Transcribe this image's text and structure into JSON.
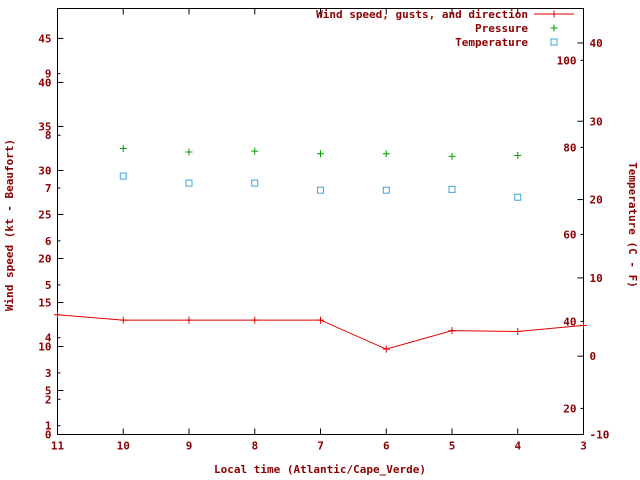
{
  "page": {
    "background": "#ffffff",
    "text_color": "#8b0000",
    "border_color": "#000000"
  },
  "legend": {
    "items": [
      {
        "label": "Wind speed, gusts, and direction",
        "marker": "line-plus"
      },
      {
        "label": "Pressure",
        "marker": "plus"
      },
      {
        "label": "Temperature",
        "marker": "open-square"
      }
    ]
  },
  "axes": {
    "x": {
      "label": "Local time (Atlantic/Cape_Verde)",
      "tick_labels": [
        "11",
        "10",
        "9",
        "8",
        "7",
        "6",
        "5",
        "4",
        "3"
      ],
      "tick_values": [
        11,
        10,
        9,
        8,
        7,
        6,
        5,
        4,
        3
      ],
      "direction": "decreasing-left-to-right"
    },
    "left": {
      "label": "Wind speed (kt - Beaufort)",
      "kt_ticks": [
        0,
        5,
        10,
        15,
        20,
        25,
        30,
        35,
        40,
        45
      ],
      "beaufort_ticks": [
        {
          "label": "1",
          "kt": 1
        },
        {
          "label": "2",
          "kt": 4
        },
        {
          "label": "3",
          "kt": 7
        },
        {
          "label": "4",
          "kt": 11
        },
        {
          "label": "5",
          "kt": 17
        },
        {
          "label": "6",
          "kt": 22
        },
        {
          "label": "7",
          "kt": 28
        },
        {
          "label": "8",
          "kt": 34
        },
        {
          "label": "9",
          "kt": 41
        }
      ],
      "range_kt": [
        0,
        48.4
      ]
    },
    "right": {
      "label": "Temperature (C - F)",
      "c_ticks": [
        -10,
        0,
        10,
        20,
        30,
        40
      ],
      "f_ticks": [
        20,
        40,
        60,
        80,
        100
      ],
      "range_c": [
        -10,
        44.4
      ]
    }
  },
  "chart_data": {
    "type": "line",
    "title": "Wind speed, gusts, and direction",
    "xlabel": "Local time (Atlantic/Cape_Verde)",
    "x_range": [
      11,
      3
    ],
    "grid": false,
    "legend_position": "top-right-inside",
    "series": [
      {
        "name": "Wind speed, gusts, and direction",
        "color": "#e00000",
        "marker": "plus",
        "line": true,
        "y_axis": "wind_kt_left",
        "x": [
          11,
          10,
          9,
          8,
          7,
          6,
          5,
          4,
          3
        ],
        "y_kt": [
          13.6,
          13.0,
          13.0,
          13.0,
          13.0,
          9.7,
          11.8,
          11.7,
          12.4
        ]
      },
      {
        "name": "Pressure",
        "color": "#00a000",
        "marker": "plus",
        "line": false,
        "y_axis": "unlabeled-hidden-pressure-scale (positions given in left-axis kt units)",
        "x": [
          10,
          9,
          8,
          7,
          6,
          5,
          4
        ],
        "y_kt": [
          32.5,
          32.1,
          32.2,
          31.9,
          31.9,
          31.6,
          31.7
        ]
      },
      {
        "name": "Temperature",
        "color": "#3fa4d8",
        "marker": "open-square",
        "line": false,
        "y_axis": "temperature_c_right",
        "x": [
          10,
          9,
          8,
          7,
          6,
          5,
          4
        ],
        "y_c": [
          23.0,
          22.1,
          22.1,
          21.2,
          21.2,
          21.3,
          20.3
        ]
      }
    ]
  }
}
